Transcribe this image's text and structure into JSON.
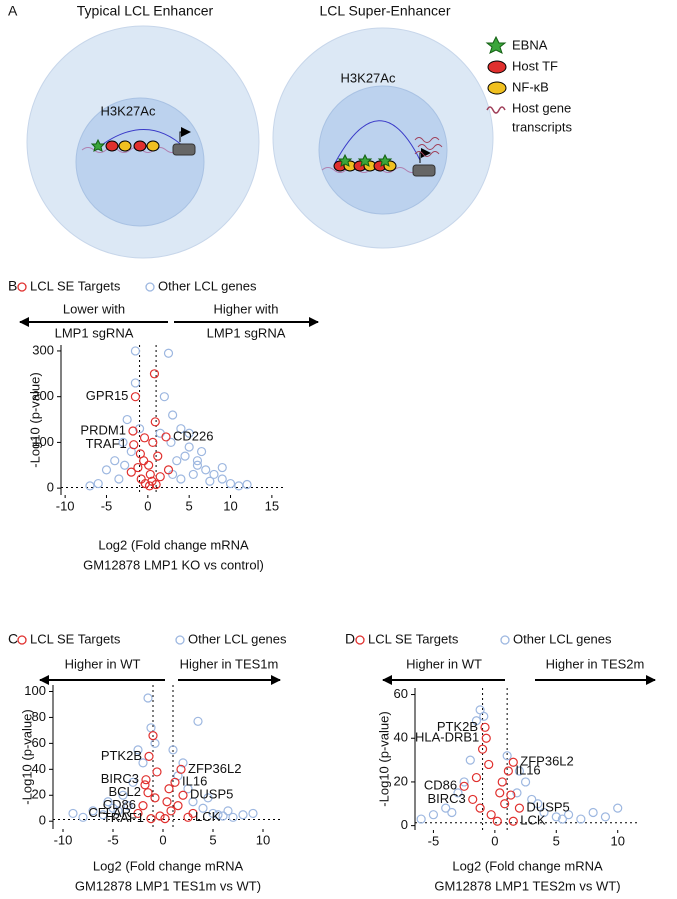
{
  "panel_a": {
    "label": "A",
    "left_title": "Typical LCL Enhancer",
    "right_title": "LCL Super-Enhancer",
    "left_mark": "H3K27Ac",
    "right_mark": "H3K27Ac",
    "legend": [
      "EBNA",
      "Host TF",
      "NF-κB",
      "Host gene",
      "transcripts"
    ]
  },
  "chart_data": [
    {
      "type": "scatter",
      "panel_label": "B",
      "left_note": [
        "Lower with",
        "LMP1 sgRNA"
      ],
      "right_note": [
        "Higher with",
        "LMP1 sgRNA"
      ],
      "x_label": [
        "Log2 (Fold change mRNA",
        "GM12878 LMP1 KO vs control)"
      ],
      "y_label": "-Log10 (p-value)",
      "xlim": [
        -10.5,
        15.5
      ],
      "ylim": [
        -15,
        313
      ],
      "xticks": [
        -10,
        -5,
        0,
        5,
        10,
        15
      ],
      "yticks": [
        0,
        100,
        200,
        300
      ],
      "vlines": [
        -1,
        1
      ],
      "hline": 1.3,
      "series": [
        {
          "name": "LCL SE Targets",
          "color": "#e0302e",
          "x": [
            -1.5,
            -1.8,
            -1.7,
            2.2,
            0.8,
            0.9,
            -0.5,
            -1.2,
            0.3,
            -0.8,
            0.5,
            1.2,
            -0.3,
            0.2,
            1.5,
            -2,
            0.6,
            -0.9,
            2.5,
            1,
            -0.4,
            0.1
          ],
          "values": [
            200,
            125,
            95,
            112,
            250,
            145,
            60,
            45,
            30,
            20,
            15,
            70,
            10,
            5,
            25,
            35,
            100,
            75,
            40,
            8,
            110,
            50
          ]
        },
        {
          "name": "Other LCL genes",
          "color": "#9db7e0",
          "x": [
            -1.5,
            2.5,
            -2.5,
            -3,
            -4,
            -5,
            -6,
            -2,
            3,
            4,
            5,
            6,
            7,
            8,
            9,
            10,
            11,
            3.5,
            4.5,
            5.5,
            6.5,
            2,
            1.5,
            -1,
            -3.5,
            -2.8,
            4,
            7.5,
            9,
            12,
            -7,
            2.8,
            5,
            6,
            3,
            -1.5
          ],
          "values": [
            300,
            295,
            150,
            100,
            60,
            40,
            10,
            80,
            160,
            130,
            90,
            60,
            40,
            30,
            20,
            10,
            5,
            60,
            70,
            30,
            80,
            200,
            120,
            130,
            20,
            50,
            20,
            15,
            45,
            8,
            5,
            100,
            120,
            50,
            30,
            230
          ]
        }
      ],
      "annotations": [
        {
          "text": "GPR15",
          "x": -1.5,
          "y": 200
        },
        {
          "text": "PRDM1",
          "x": -1.8,
          "y": 125
        },
        {
          "text": "TRAF1",
          "x": -1.7,
          "y": 95
        },
        {
          "text": "CD226",
          "x": 2.2,
          "y": 112
        }
      ]
    },
    {
      "type": "scatter",
      "panel_label": "C",
      "left_note": [
        "Higher in WT"
      ],
      "right_note": [
        "Higher in TES1m"
      ],
      "x_label": [
        "Log2 (Fold change mRNA",
        "GM12878 LMP1 TES1m vs WT)"
      ],
      "y_label": "-Log10 (p-value)",
      "xlim": [
        -11,
        11
      ],
      "ylim": [
        -6,
        105
      ],
      "xticks": [
        -10,
        -5,
        0,
        5,
        10
      ],
      "yticks": [
        0,
        20,
        40,
        60,
        80,
        100
      ],
      "vlines": [
        -1,
        1
      ],
      "hline": 1.3,
      "series": [
        {
          "name": "LCL SE Targets",
          "color": "#e0302e",
          "x": [
            -1.4,
            -1.7,
            -1.5,
            -2,
            -2.5,
            -1.2,
            1.8,
            1.2,
            2,
            2.5,
            -1,
            -0.6,
            0.4,
            0.8,
            -0.3,
            0.2,
            1.5,
            -0.8,
            0.6,
            -1.8,
            3
          ],
          "values": [
            50,
            32,
            22,
            12,
            6,
            2,
            40,
            30,
            20,
            3,
            66,
            38,
            15,
            8,
            4,
            2,
            12,
            18,
            25,
            28,
            6
          ]
        },
        {
          "name": "Other LCL genes",
          "color": "#9db7e0",
          "x": [
            -1.5,
            -2.5,
            -3,
            -4,
            -5,
            -6,
            -7,
            -8,
            -9,
            3.5,
            4,
            5,
            6,
            7,
            8,
            9,
            -1.2,
            -2,
            2.5,
            1.5,
            3,
            -3.5,
            2,
            -4.5,
            5.5,
            -0.8,
            1,
            6.5,
            -5.5,
            4.5
          ],
          "values": [
            95,
            55,
            30,
            20,
            10,
            5,
            8,
            3,
            6,
            77,
            10,
            6,
            4,
            3,
            5,
            6,
            72,
            45,
            25,
            35,
            15,
            12,
            45,
            8,
            5,
            60,
            55,
            8,
            15,
            18
          ]
        }
      ],
      "annotations": [
        {
          "text": "PTK2B",
          "x": -1.4,
          "y": 50
        },
        {
          "text": "BIRC3",
          "x": -1.7,
          "y": 32
        },
        {
          "text": "BCL2",
          "x": -1.5,
          "y": 22
        },
        {
          "text": "CD86",
          "x": -2,
          "y": 12
        },
        {
          "text": "CFLAR",
          "x": -2.5,
          "y": 6
        },
        {
          "text": "TRAF1",
          "x": -1.2,
          "y": 2
        },
        {
          "text": "ZFP36L2",
          "x": 1.8,
          "y": 40
        },
        {
          "text": "IL16",
          "x": 1.2,
          "y": 30
        },
        {
          "text": "DUSP5",
          "x": 2,
          "y": 20
        },
        {
          "text": "LCK",
          "x": 2.5,
          "y": 3
        }
      ]
    },
    {
      "type": "scatter",
      "panel_label": "D",
      "left_note": [
        "Higher in WT"
      ],
      "right_note": [
        "Higher in TES2m"
      ],
      "x_label": [
        "Log2 (Fold change mRNA",
        "GM12878 LMP1 TES2m vs WT)"
      ],
      "y_label": "-Log10 (p-value)",
      "xlim": [
        -6.5,
        11
      ],
      "ylim": [
        -2,
        63
      ],
      "xticks": [
        -5,
        0,
        5,
        10
      ],
      "yticks": [
        0,
        20,
        40,
        60
      ],
      "vlines": [
        -1,
        1
      ],
      "hline": 1.3,
      "series": [
        {
          "name": "LCL SE Targets",
          "color": "#e0302e",
          "x": [
            -0.8,
            -0.7,
            1.5,
            1.1,
            -2.5,
            -1.8,
            2,
            1.5,
            -1,
            -0.5,
            0.4,
            0.8,
            -0.3,
            0.2,
            -1.5,
            0.6,
            -1.2,
            1.3
          ],
          "values": [
            45,
            40,
            29,
            25,
            18,
            12,
            8,
            2,
            35,
            28,
            15,
            10,
            5,
            2,
            22,
            20,
            8,
            14
          ]
        },
        {
          "name": "Other LCL genes",
          "color": "#9db7e0",
          "x": [
            -1.2,
            -1.5,
            -2,
            -3,
            -4,
            -5,
            -6,
            2.5,
            3,
            4,
            5,
            6,
            7,
            8,
            9,
            10,
            -0.9,
            1,
            2,
            -2.5,
            3.5,
            -3.5,
            5.5,
            1.8
          ],
          "values": [
            53,
            48,
            30,
            15,
            8,
            5,
            3,
            20,
            12,
            6,
            4,
            5,
            3,
            6,
            4,
            8,
            50,
            32,
            25,
            20,
            10,
            6,
            3,
            15
          ]
        }
      ],
      "annotations": [
        {
          "text": "PTK2B",
          "x": -0.8,
          "y": 45
        },
        {
          "text": "HLA-DRB1",
          "x": -0.7,
          "y": 40
        },
        {
          "text": "ZFP36L2",
          "x": 1.5,
          "y": 29
        },
        {
          "text": "IL16",
          "x": 1.1,
          "y": 25
        },
        {
          "text": "CD86",
          "x": -2.5,
          "y": 18
        },
        {
          "text": "BIRC3",
          "x": -1.8,
          "y": 12
        },
        {
          "text": "DUSP5",
          "x": 2,
          "y": 8
        },
        {
          "text": "LCK",
          "x": 1.5,
          "y": 2
        }
      ]
    }
  ]
}
